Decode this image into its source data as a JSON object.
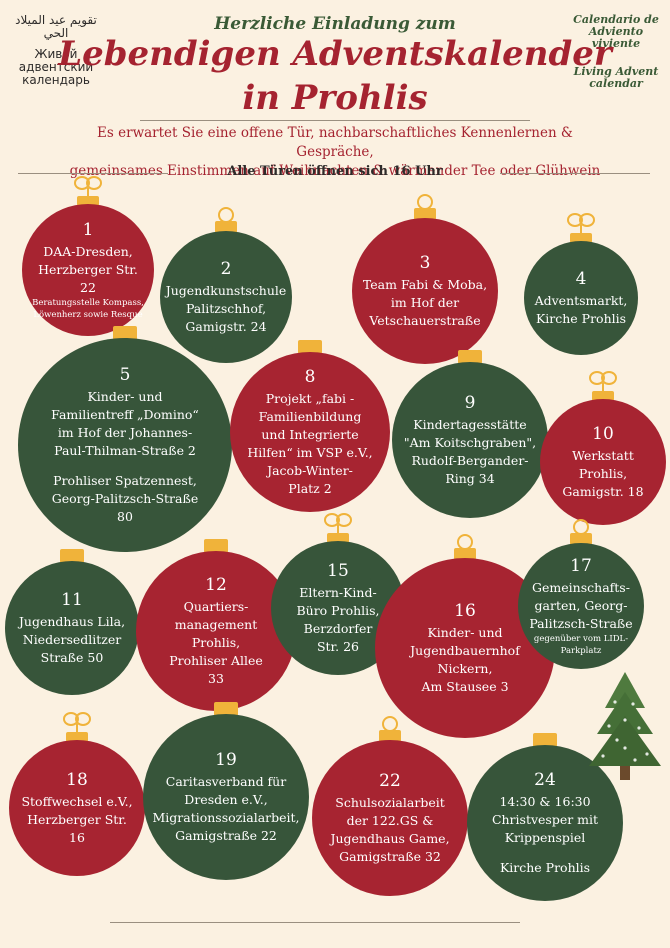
{
  "corner_left": {
    "arabic": "تقويم عيد الميلاد الحي",
    "russian": "Живой адвентский календарь"
  },
  "corner_right": {
    "spanish": "Calendario de Adviento viviente",
    "english": "Living Advent calendar"
  },
  "header": {
    "subtitle": "Herzliche Einladung zum",
    "title_line1": "Lebendigen Adventskalender",
    "title_line2": "in Prohlis",
    "intro_line1": "Es erwartet Sie eine offene Tür, nachbarschaftliches Kennenlernen & Gespräche,",
    "intro_line2": "gemeinsames Einstimmen auf Weihnachten & wärmender Tee oder Glühwein",
    "doors": "Alle Türen öffnen sich 16 Uhr"
  },
  "colors": {
    "red": "#a72431",
    "green": "#37553a",
    "gold": "#f0b33a",
    "background": "#fbf1e1"
  },
  "doors": [
    {
      "day": "1",
      "color": "red",
      "lines": [
        "DAA-Dresden,",
        "Herzberger Str. 22"
      ],
      "small": [
        "Beratungsstelle Kompass,",
        "Löwenherz sowie Resque"
      ]
    },
    {
      "day": "2",
      "color": "green",
      "lines": [
        "Jugendkunstschule",
        "Palitzschhof,",
        "Gamigstr. 24"
      ]
    },
    {
      "day": "3",
      "color": "red",
      "lines": [
        "Team Fabi & Moba,",
        "im Hof der",
        "Vetschauerstraße"
      ]
    },
    {
      "day": "4",
      "color": "green",
      "lines": [
        "Adventsmarkt,",
        "Kirche Prohlis"
      ]
    },
    {
      "day": "5",
      "color": "green",
      "lines": [
        "Kinder- und",
        "Familientreff „Domino“",
        "im Hof der Johannes-",
        "Paul-Thilman-Straße 2",
        "",
        "Prohliser Spatzennest,",
        "Georg-Palitzsch-Straße",
        "80"
      ]
    },
    {
      "day": "8",
      "color": "red",
      "lines": [
        "Projekt „fabi -",
        "Familienbildung",
        "und Integrierte",
        "Hilfen“ im VSP e.V.,",
        "Jacob-Winter-",
        "Platz 2"
      ]
    },
    {
      "day": "9",
      "color": "green",
      "lines": [
        "Kindertagesstätte",
        "\"Am Koitschgraben\",",
        "Rudolf-Bergander-",
        "Ring 34"
      ]
    },
    {
      "day": "10",
      "color": "red",
      "lines": [
        "Werkstatt",
        "Prohlis,",
        "Gamigstr. 18"
      ]
    },
    {
      "day": "11",
      "color": "green",
      "lines": [
        "Jugendhaus Lila,",
        "Niedersedlitzer",
        "Straße 50"
      ]
    },
    {
      "day": "12",
      "color": "red",
      "lines": [
        "Quartiers-",
        "management",
        "Prohlis,",
        "Prohliser Allee",
        "33"
      ]
    },
    {
      "day": "15",
      "color": "green",
      "lines": [
        "Eltern-Kind-",
        "Büro Prohlis,",
        "Berzdorfer",
        "Str. 26"
      ]
    },
    {
      "day": "16",
      "color": "red",
      "lines": [
        "Kinder- und",
        "Jugendbauernhof",
        "Nickern,",
        "Am Stausee 3"
      ]
    },
    {
      "day": "17",
      "color": "green",
      "lines": [
        "Gemeinschafts-",
        "garten, Georg-",
        "Palitzsch-Straße"
      ],
      "small": [
        "gegenüber vom LIDL-",
        "Parkplatz"
      ]
    },
    {
      "day": "18",
      "color": "red",
      "lines": [
        "Stoffwechsel e.V.,",
        "Herzberger Str. 16"
      ]
    },
    {
      "day": "19",
      "color": "green",
      "lines": [
        "Caritasverband für",
        "Dresden e.V.,",
        "Migrationssozialarbeit,",
        "Gamigstraße 22"
      ]
    },
    {
      "day": "22",
      "color": "red",
      "lines": [
        "Schulsozialarbeit",
        "der 122.GS  &",
        "Jugendhaus Game,",
        "Gamigstraße 32"
      ]
    },
    {
      "day": "24",
      "color": "green",
      "lines": [
        "14:30 & 16:30",
        "Christvesper mit",
        "Krippenspiel",
        "",
        "Kirche Prohlis"
      ]
    }
  ]
}
